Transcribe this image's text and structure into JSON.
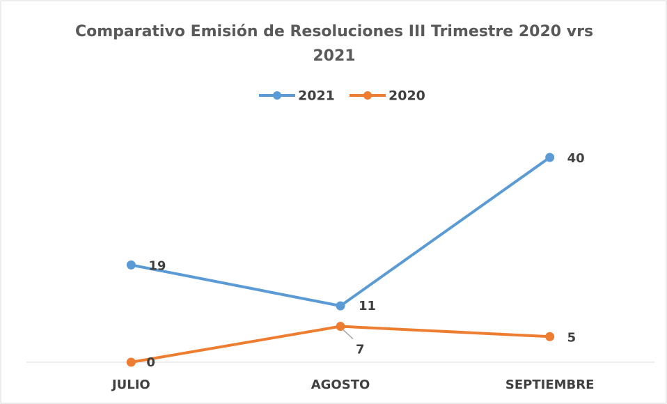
{
  "chart_data": {
    "type": "line",
    "title": "Comparativo Emisión de Resoluciones III Trimestre 2020 vrs 2021",
    "categories": [
      "JULIO",
      "AGOSTO",
      "SEPTIEMBRE"
    ],
    "series": [
      {
        "name": "2021",
        "color": "#5b9bd5",
        "values": [
          19,
          11,
          40
        ]
      },
      {
        "name": "2020",
        "color": "#ed7d31",
        "values": [
          0,
          7,
          5
        ]
      }
    ],
    "legend": "top"
  }
}
